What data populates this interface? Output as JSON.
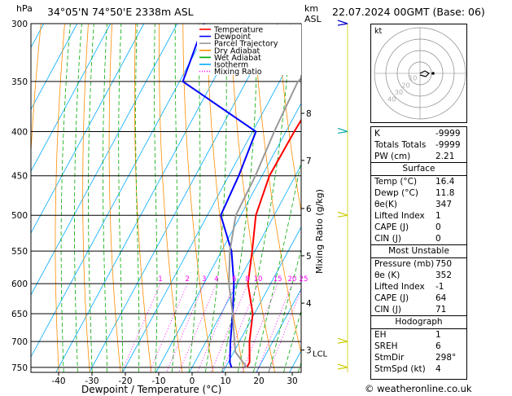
{
  "header": {
    "hpa_label": "hPa",
    "location": "34°05'N  74°50'E  2338m  ASL",
    "km_label": "km",
    "asl_label": "ASL",
    "datetime": "22.07.2024  00GMT  (Base: 06)"
  },
  "footer": {
    "copyright": "© weatheronline.co.uk"
  },
  "legend": {
    "items": [
      {
        "label": "Temperature",
        "color": "#ff0000",
        "dash": "solid"
      },
      {
        "label": "Dewpoint",
        "color": "#0000ff",
        "dash": "solid"
      },
      {
        "label": "Parcel Trajectory",
        "color": "#999999",
        "dash": "solid"
      },
      {
        "label": "Dry Adiabat",
        "color": "#ff8c00",
        "dash": "solid"
      },
      {
        "label": "Wet Adiabat",
        "color": "#00aa00",
        "dash": "solid"
      },
      {
        "label": "Isotherm",
        "color": "#00aaff",
        "dash": "solid"
      },
      {
        "label": "Mixing Ratio",
        "color": "#ff00ff",
        "dash": "dotted"
      }
    ]
  },
  "chart_data": {
    "type": "line",
    "xlabel": "Dewpoint / Temperature (°C)",
    "ylabel": "hPa",
    "right_axis_label": "Mixing Ratio (g/kg)",
    "x_ticks": [
      -40,
      -30,
      -20,
      -10,
      0,
      10,
      20,
      30
    ],
    "pressure_levels": [
      300,
      350,
      400,
      450,
      500,
      550,
      600,
      650,
      700,
      750
    ],
    "ylim": [
      760,
      300
    ],
    "km_ticks": [
      {
        "label": "8",
        "p": 381
      },
      {
        "label": "7",
        "p": 432
      },
      {
        "label": "6",
        "p": 491
      },
      {
        "label": "5",
        "p": 557
      },
      {
        "label": "4",
        "p": 632
      },
      {
        "label": "3",
        "p": 716
      }
    ],
    "lcl": {
      "label": "LCL",
      "p": 722
    },
    "mixing_ratio_labels": [
      "1",
      "2",
      "3",
      "4",
      "6",
      "8",
      "10",
      "15",
      "20",
      "25"
    ],
    "series": [
      {
        "name": "Temperature",
        "color": "#ff0000",
        "points": [
          [
            -5,
            300
          ],
          [
            -6.5,
            350
          ],
          [
            -7.5,
            400
          ],
          [
            -7.8,
            450
          ],
          [
            -5.5,
            500
          ],
          [
            -0.8,
            550
          ],
          [
            3.2,
            600
          ],
          [
            9.5,
            650
          ],
          [
            13,
            700
          ],
          [
            16.4,
            740
          ],
          [
            16.4,
            750
          ]
        ]
      },
      {
        "name": "Dewpoint",
        "color": "#0000ff",
        "points": [
          [
            -52,
            300
          ],
          [
            -49,
            350
          ],
          [
            -19,
            400
          ],
          [
            -17,
            450
          ],
          [
            -16,
            500
          ],
          [
            -7,
            550
          ],
          [
            -1,
            600
          ],
          [
            3.5,
            650
          ],
          [
            7.3,
            700
          ],
          [
            10.5,
            740
          ],
          [
            11.8,
            750
          ]
        ]
      },
      {
        "name": "Parcel Trajectory",
        "color": "#999999",
        "points": [
          [
            -6,
            300
          ],
          [
            -14.5,
            350
          ],
          [
            -13.5,
            400
          ],
          [
            -12,
            450
          ],
          [
            -11.5,
            500
          ],
          [
            -7.5,
            550
          ],
          [
            -2.5,
            600
          ],
          [
            3.5,
            650
          ],
          [
            8.5,
            700
          ],
          [
            10.5,
            720
          ],
          [
            16.4,
            750
          ]
        ]
      }
    ]
  },
  "hodograph": {
    "title": "kt",
    "ring_labels": [
      "10",
      "20",
      "30",
      "40"
    ]
  },
  "indices": [
    {
      "label": "K",
      "value": "-9999"
    },
    {
      "label": "Totals Totals",
      "value": "-9999"
    },
    {
      "label": "PW (cm)",
      "value": "2.21"
    }
  ],
  "surface": {
    "title": "Surface",
    "rows": [
      {
        "label": "Temp (°C)",
        "value": "16.4"
      },
      {
        "label": "Dewp (°C)",
        "value": "11.8"
      },
      {
        "label": "θe(K)",
        "value": "347"
      },
      {
        "label": "Lifted Index",
        "value": "1"
      },
      {
        "label": "CAPE (J)",
        "value": "0"
      },
      {
        "label": "CIN (J)",
        "value": "0"
      }
    ]
  },
  "most_unstable": {
    "title": "Most Unstable",
    "rows": [
      {
        "label": "Pressure (mb)",
        "value": "750"
      },
      {
        "label": "θe (K)",
        "value": "352"
      },
      {
        "label": "Lifted Index",
        "value": "-1"
      },
      {
        "label": "CAPE (J)",
        "value": "64"
      },
      {
        "label": "CIN (J)",
        "value": "71"
      }
    ]
  },
  "hodograph_table": {
    "title": "Hodograph",
    "rows": [
      {
        "label": "EH",
        "value": "1"
      },
      {
        "label": "SREH",
        "value": "6"
      },
      {
        "label": "StmDir",
        "value": "298°"
      },
      {
        "label": "StmSpd (kt)",
        "value": "4"
      }
    ]
  }
}
